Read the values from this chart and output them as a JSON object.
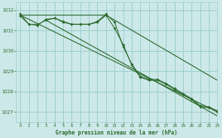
{
  "background_color": "#cce8e8",
  "grid_color": "#99cccc",
  "line_color": "#2d6a2d",
  "title": "Graphe pression niveau de la mer (hPa)",
  "xlim": [
    -0.5,
    23
  ],
  "ylim": [
    1026.5,
    1032.4
  ],
  "yticks": [
    1027,
    1028,
    1029,
    1030,
    1031,
    1032
  ],
  "xticks": [
    0,
    1,
    2,
    3,
    4,
    5,
    6,
    7,
    8,
    9,
    10,
    11,
    12,
    13,
    14,
    15,
    16,
    17,
    18,
    19,
    20,
    21,
    22,
    23
  ],
  "series": [
    {
      "x": [
        0,
        1,
        2,
        3,
        4,
        5,
        6,
        7,
        8,
        9,
        10,
        11,
        12,
        13,
        14,
        15,
        16,
        17,
        18,
        19,
        20,
        21,
        22,
        23
      ],
      "y": [
        1031.7,
        1031.3,
        1031.3,
        1031.5,
        1031.6,
        1031.4,
        1031.3,
        1031.3,
        1031.3,
        1031.4,
        1031.75,
        1031.1,
        1030.3,
        1029.3,
        1028.7,
        1028.55,
        1028.55,
        1028.35,
        1028.1,
        1027.85,
        1027.6,
        1027.25,
        1027.2,
        1027.0
      ]
    },
    {
      "x": [
        0,
        1,
        2,
        3,
        4,
        5,
        6,
        7,
        8,
        9,
        10,
        11,
        12,
        13,
        14,
        15,
        16,
        17,
        18,
        19,
        20,
        21,
        22,
        23
      ],
      "y": [
        1031.8,
        1031.3,
        1031.25,
        1031.55,
        1031.6,
        1031.45,
        1031.3,
        1031.3,
        1031.3,
        1031.45,
        1031.8,
        1031.4,
        1030.2,
        1029.35,
        1028.75,
        1028.6,
        1028.6,
        1028.4,
        1028.15,
        1027.9,
        1027.65,
        1027.3,
        1027.25,
        1027.05
      ]
    },
    {
      "x": [
        0,
        23
      ],
      "y": [
        1031.75,
        1027.0
      ]
    },
    {
      "x": [
        0,
        10,
        23
      ],
      "y": [
        1031.75,
        1031.75,
        1028.55
      ]
    },
    {
      "x": [
        3,
        23
      ],
      "y": [
        1031.5,
        1026.8
      ]
    }
  ]
}
